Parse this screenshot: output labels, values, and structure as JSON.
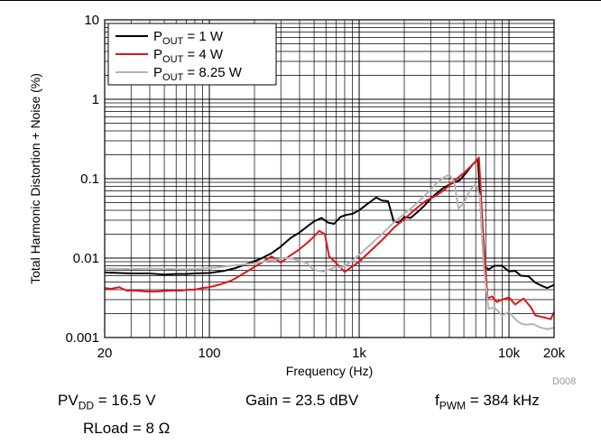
{
  "chart_data": {
    "type": "line",
    "xlabel": "Frequency (Hz)",
    "ylabel": "Total Harmonic Distortion + Noise (%)",
    "xscale": "log",
    "yscale": "log",
    "xlim": [
      20,
      20000
    ],
    "ylim": [
      0.001,
      10
    ],
    "x_ticks": [
      {
        "value": 20,
        "label": "20"
      },
      {
        "value": 100,
        "label": "100"
      },
      {
        "value": 1000,
        "label": "1k"
      },
      {
        "value": 10000,
        "label": "10k"
      },
      {
        "value": 20000,
        "label": "20k"
      }
    ],
    "y_ticks": [
      {
        "value": 0.001,
        "label": "0.001"
      },
      {
        "value": 0.01,
        "label": "0.01"
      },
      {
        "value": 0.1,
        "label": "0.1"
      },
      {
        "value": 1,
        "label": "1"
      },
      {
        "value": 10,
        "label": "10"
      }
    ],
    "grid": true,
    "legend_position": "top-left",
    "series": [
      {
        "name": "P_OUT = 1 W",
        "legend": {
          "main": "P",
          "sub": "OUT",
          "rest": " = 1 W"
        },
        "color": "#000000",
        "points": [
          [
            20,
            0.0066
          ],
          [
            25,
            0.0065
          ],
          [
            30,
            0.0064
          ],
          [
            40,
            0.0064
          ],
          [
            50,
            0.0062
          ],
          [
            60,
            0.0063
          ],
          [
            70,
            0.0063
          ],
          [
            80,
            0.0064
          ],
          [
            100,
            0.0065
          ],
          [
            125,
            0.0069
          ],
          [
            150,
            0.0075
          ],
          [
            180,
            0.0085
          ],
          [
            220,
            0.0098
          ],
          [
            260,
            0.0115
          ],
          [
            300,
            0.014
          ],
          [
            350,
            0.018
          ],
          [
            400,
            0.021
          ],
          [
            450,
            0.025
          ],
          [
            500,
            0.029
          ],
          [
            560,
            0.032
          ],
          [
            620,
            0.028
          ],
          [
            680,
            0.027
          ],
          [
            750,
            0.033
          ],
          [
            820,
            0.035
          ],
          [
            900,
            0.036
          ],
          [
            1000,
            0.04
          ],
          [
            1100,
            0.046
          ],
          [
            1200,
            0.052
          ],
          [
            1300,
            0.058
          ],
          [
            1420,
            0.053
          ],
          [
            1560,
            0.052
          ],
          [
            1700,
            0.029
          ],
          [
            1850,
            0.028
          ],
          [
            2000,
            0.033
          ],
          [
            2200,
            0.032
          ],
          [
            2450,
            0.038
          ],
          [
            2700,
            0.045
          ],
          [
            3000,
            0.056
          ],
          [
            3300,
            0.066
          ],
          [
            3700,
            0.078
          ],
          [
            4200,
            0.088
          ],
          [
            4700,
            0.096
          ],
          [
            5200,
            0.12
          ],
          [
            5700,
            0.15
          ],
          [
            6200,
            0.175
          ],
          [
            6800,
            0.008
          ],
          [
            7300,
            0.0072
          ],
          [
            8000,
            0.008
          ],
          [
            9000,
            0.008
          ],
          [
            10000,
            0.0068
          ],
          [
            11000,
            0.0069
          ],
          [
            12000,
            0.006
          ],
          [
            13500,
            0.0059
          ],
          [
            15000,
            0.0049
          ],
          [
            16500,
            0.0045
          ],
          [
            18000,
            0.0042
          ],
          [
            20000,
            0.0046
          ]
        ]
      },
      {
        "name": "P_OUT = 4 W",
        "legend": {
          "main": "P",
          "sub": "OUT",
          "rest": " = 4 W"
        },
        "color": "#e0151a",
        "points": [
          [
            20,
            0.0042
          ],
          [
            22,
            0.0041
          ],
          [
            25,
            0.0043
          ],
          [
            28,
            0.0039
          ],
          [
            32,
            0.0039
          ],
          [
            38,
            0.0038
          ],
          [
            45,
            0.0038
          ],
          [
            55,
            0.0039
          ],
          [
            65,
            0.0039
          ],
          [
            72,
            0.004
          ],
          [
            80,
            0.004
          ],
          [
            90,
            0.0042
          ],
          [
            100,
            0.0043
          ],
          [
            120,
            0.0047
          ],
          [
            140,
            0.0052
          ],
          [
            160,
            0.006
          ],
          [
            190,
            0.0073
          ],
          [
            220,
            0.0086
          ],
          [
            260,
            0.0105
          ],
          [
            300,
            0.0088
          ],
          [
            340,
            0.0105
          ],
          [
            390,
            0.0125
          ],
          [
            440,
            0.015
          ],
          [
            490,
            0.018
          ],
          [
            540,
            0.022
          ],
          [
            590,
            0.02
          ],
          [
            630,
            0.0105
          ],
          [
            680,
            0.0092
          ],
          [
            730,
            0.008
          ],
          [
            800,
            0.0067
          ],
          [
            880,
            0.0076
          ],
          [
            1000,
            0.009
          ],
          [
            1200,
            0.0125
          ],
          [
            1450,
            0.0175
          ],
          [
            1700,
            0.024
          ],
          [
            2000,
            0.031
          ],
          [
            2400,
            0.042
          ],
          [
            2800,
            0.053
          ],
          [
            3200,
            0.06
          ],
          [
            3700,
            0.072
          ],
          [
            4200,
            0.09
          ],
          [
            4600,
            0.104
          ],
          [
            5000,
            0.118
          ],
          [
            5500,
            0.14
          ],
          [
            6000,
            0.165
          ],
          [
            6300,
            0.185
          ],
          [
            6700,
            0.022
          ],
          [
            7200,
            0.0031
          ],
          [
            7700,
            0.0033
          ],
          [
            8300,
            0.0028
          ],
          [
            9000,
            0.003
          ],
          [
            10000,
            0.0032
          ],
          [
            11000,
            0.0026
          ],
          [
            12500,
            0.0031
          ],
          [
            14000,
            0.0024
          ],
          [
            15000,
            0.0019
          ],
          [
            17000,
            0.0018
          ],
          [
            19000,
            0.0017
          ],
          [
            20000,
            0.0021
          ]
        ]
      },
      {
        "name": "P_OUT = 8.25 W",
        "legend": {
          "main": "P",
          "sub": "OUT",
          "rest": " = 8.25 W"
        },
        "color": "#b4b4b4",
        "points": [
          [
            20,
            0.0074
          ],
          [
            30,
            0.0073
          ],
          [
            40,
            0.0074
          ],
          [
            55,
            0.0073
          ],
          [
            70,
            0.0072
          ],
          [
            90,
            0.0074
          ],
          [
            110,
            0.0076
          ],
          [
            140,
            0.008
          ],
          [
            170,
            0.0083
          ],
          [
            200,
            0.0086
          ],
          [
            240,
            0.0092
          ],
          [
            280,
            0.0096
          ],
          [
            320,
            0.0101
          ],
          [
            360,
            0.0098
          ],
          [
            400,
            0.0093
          ],
          [
            450,
            0.0086
          ],
          [
            480,
            0.0075
          ],
          [
            520,
            0.007
          ],
          [
            580,
            0.0068
          ],
          [
            640,
            0.0072
          ],
          [
            700,
            0.0078
          ],
          [
            760,
            0.0076
          ],
          [
            830,
            0.0083
          ],
          [
            900,
            0.0093
          ],
          [
            1000,
            0.011
          ],
          [
            1200,
            0.015
          ],
          [
            1450,
            0.021
          ],
          [
            1700,
            0.028
          ],
          [
            2000,
            0.036
          ],
          [
            2400,
            0.048
          ],
          [
            2800,
            0.064
          ],
          [
            3200,
            0.083
          ],
          [
            3700,
            0.105
          ],
          [
            4000,
            0.112
          ],
          [
            4300,
            0.093
          ],
          [
            4600,
            0.042
          ],
          [
            5000,
            0.05
          ],
          [
            5500,
            0.072
          ],
          [
            6000,
            0.085
          ],
          [
            6400,
            0.06
          ],
          [
            6800,
            0.0075
          ],
          [
            7300,
            0.0023
          ],
          [
            8000,
            0.0024
          ],
          [
            9000,
            0.0019
          ],
          [
            10000,
            0.0021
          ],
          [
            11000,
            0.0017
          ],
          [
            12000,
            0.0015
          ],
          [
            13000,
            0.00145
          ],
          [
            14500,
            0.00148
          ],
          [
            16000,
            0.00135
          ],
          [
            18000,
            0.00127
          ],
          [
            20000,
            0.00133
          ]
        ]
      }
    ]
  },
  "conditions": {
    "pvdd": {
      "main": "PV",
      "sub": "DD",
      "rest": " = 16.5 V"
    },
    "gain": "Gain = 23.5 dBV",
    "fpwm": {
      "main": "f",
      "sub": "PWM",
      "rest": " = 384 kHz"
    },
    "rload": "RLoad = 8 Ω"
  },
  "figure_id": "D008"
}
